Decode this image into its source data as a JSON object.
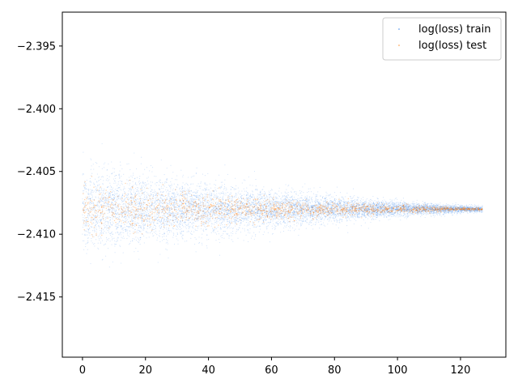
{
  "chart_data": {
    "type": "scatter",
    "title": "",
    "xlabel": "",
    "ylabel": "",
    "xlim": [
      -6.4,
      134.4
    ],
    "ylim": [
      -2.4198,
      -2.3923
    ],
    "x_ticks": [
      0,
      20,
      40,
      60,
      80,
      100,
      120
    ],
    "x_tick_labels": [
      "0",
      "20",
      "40",
      "60",
      "80",
      "100",
      "120"
    ],
    "y_ticks": [
      -2.395,
      -2.4,
      -2.405,
      -2.41,
      -2.415
    ],
    "y_tick_labels": [
      "−2.395",
      "−2.400",
      "−2.405",
      "−2.410",
      "−2.415"
    ],
    "legend_position": "upper-right",
    "grid": false,
    "series": [
      {
        "name": "log(loss) train",
        "color": "#1f77e8",
        "x_range": [
          0,
          127
        ],
        "center": -2.408,
        "spread_at_start": 0.0025,
        "spread_at_end": 0.0002
      },
      {
        "name": "log(loss) test",
        "color": "#ff7f0e",
        "x_range": [
          0,
          127
        ],
        "center": -2.408,
        "spread_at_start": 0.0015,
        "spread_at_end": 0.0001
      }
    ]
  }
}
